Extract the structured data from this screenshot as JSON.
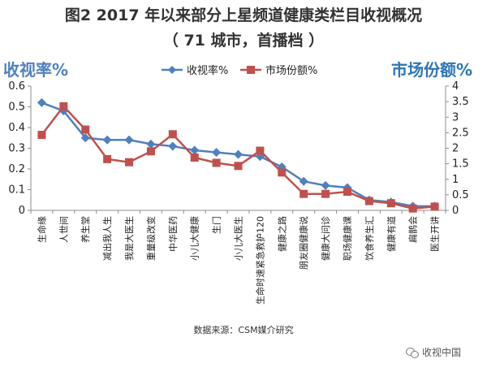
{
  "header": {
    "title_line1": "图2 2017 年以来部分上星频道健康类栏目收视概况",
    "title_line2": "（ 71 城市，首播档 ）"
  },
  "axes": {
    "left_title": "收视率%",
    "right_title": "市场份额%"
  },
  "colors": {
    "series1": "#4F81BD",
    "series2": "#C0504D",
    "left_title": "#4F81BD",
    "right_title": "#2E75B6",
    "axis": "#8C8C8C"
  },
  "footer": {
    "source": "数据来源：CSM媒介研究",
    "watermark": "收视中国"
  },
  "chart_data": {
    "type": "line",
    "title": "图2 2017 年以来部分上星频道健康类栏目收视概况",
    "subtitle": "（ 71 城市，首播档 ）",
    "categories": [
      "生命缘",
      "人世间",
      "养生堂",
      "减出我人生",
      "我是大医生",
      "重量级改变",
      "中华医药",
      "小儿大健康",
      "生门",
      "小儿大医生",
      "生命时速紧急救护120",
      "健康之路",
      "朋友圈健康说",
      "健康大问诊",
      "职场健康课",
      "饮食养生汇",
      "健康有道",
      "扁鹊会",
      "医生开讲"
    ],
    "ylabel": "收视率%",
    "y2label": "市场份额%",
    "ylim": [
      0,
      0.6
    ],
    "y2lim": [
      0,
      4
    ],
    "yticks": [
      "0",
      "0.1",
      "0.2",
      "0.3",
      "0.4",
      "0.5",
      "0.6"
    ],
    "y2ticks": [
      "0",
      "0.5",
      "1",
      "1.5",
      "2",
      "2.5",
      "3",
      "3.5",
      "4"
    ],
    "legend_position": "top-center",
    "series": [
      {
        "name": "收视率%",
        "axis": "left",
        "marker": "diamond",
        "values": [
          0.52,
          0.48,
          0.35,
          0.34,
          0.34,
          0.32,
          0.31,
          0.29,
          0.28,
          0.27,
          0.26,
          0.21,
          0.14,
          0.12,
          0.11,
          0.05,
          0.04,
          0.02,
          0.02
        ]
      },
      {
        "name": "市场份额%",
        "axis": "right",
        "marker": "square",
        "values": [
          2.43,
          3.35,
          2.6,
          1.65,
          1.55,
          1.9,
          2.45,
          1.7,
          1.53,
          1.43,
          1.92,
          1.22,
          0.53,
          0.53,
          0.6,
          0.3,
          0.23,
          0.06,
          0.12
        ]
      }
    ]
  }
}
